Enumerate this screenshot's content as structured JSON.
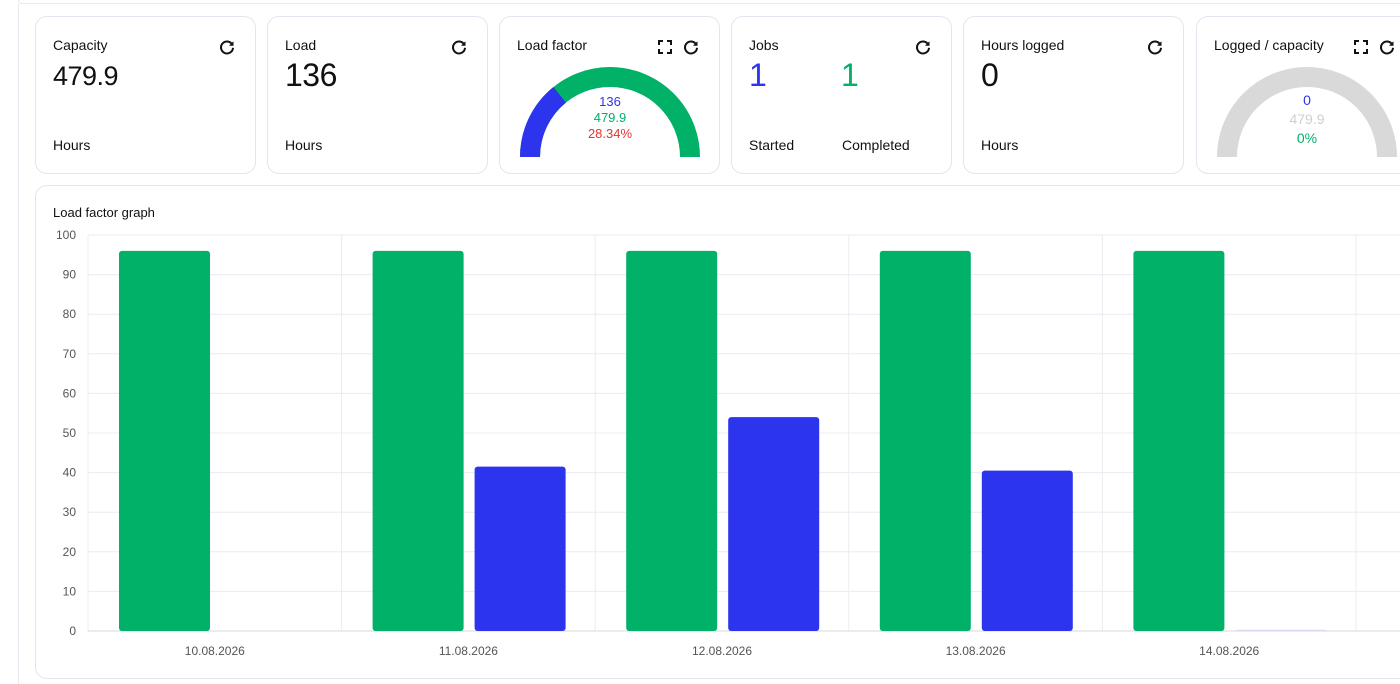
{
  "cards": {
    "capacity": {
      "title": "Capacity",
      "value": "479.9",
      "unit": "Hours"
    },
    "load": {
      "title": "Load",
      "value": "136",
      "unit": "Hours"
    },
    "load_factor": {
      "title": "Load factor",
      "load": "136",
      "capacity": "479.9",
      "percent": "28.34%",
      "fraction": 0.2834
    },
    "jobs": {
      "title": "Jobs",
      "started_value": "1",
      "started_label": "Started",
      "completed_value": "1",
      "completed_label": "Completed"
    },
    "hours_logged": {
      "title": "Hours logged",
      "value": "0",
      "unit": "Hours"
    },
    "logged_capacity": {
      "title": "Logged / capacity",
      "logged": "0",
      "capacity": "479.9",
      "percent": "0%",
      "fraction": 0
    }
  },
  "colors": {
    "green": "#00b167",
    "blue": "#2c34ee",
    "red": "#e8322f",
    "gray": "#d9d9d9"
  },
  "icons": {
    "refresh": "refresh-icon",
    "expand": "expand-icon"
  },
  "chart_data": {
    "type": "bar",
    "title": "Load factor graph",
    "categories": [
      "10.08.2026",
      "11.08.2026",
      "12.08.2026",
      "13.08.2026",
      "14.08.2026"
    ],
    "series": [
      {
        "values": [
          96,
          96,
          96,
          96,
          96
        ],
        "color": "#00b167"
      },
      {
        "values": [
          0,
          41.5,
          54,
          40.5,
          0.3
        ],
        "color": "#2c34ee"
      }
    ],
    "ylim": [
      0,
      100
    ],
    "yticks": [
      0,
      10,
      20,
      30,
      40,
      50,
      60,
      70,
      80,
      90,
      100
    ],
    "grid": true,
    "xlabel": "",
    "ylabel": ""
  }
}
